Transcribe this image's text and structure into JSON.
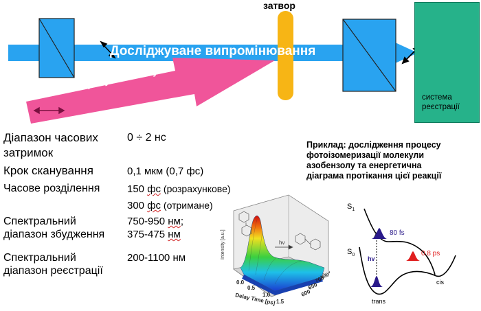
{
  "shutter_label": "затвор",
  "beam_label": "Досліджуване випромінювання",
  "gate_pulse_label": "Стробуючий імпульс",
  "detection_system": {
    "line1": "система",
    "line2": "реєстрації"
  },
  "specs": {
    "delay_range_label_1": "Діапазон часових",
    "delay_range_label_2": "затримок",
    "delay_range_value": "0 ÷ 2 нс",
    "scan_step_label": "Крок сканування",
    "scan_step_value": "0,1 мкм (0,7 фс)",
    "time_resolution_label": "Часове розділення",
    "time_res_value_1_num": "150 ",
    "time_res_value_1_unit": "фс",
    "time_res_value_1_note": " (розрахункове)",
    "time_res_value_2_num": "300 ",
    "time_res_value_2_unit": "фс",
    "time_res_value_2_note": " (отримане)",
    "excitation_label_1": "Спектральний",
    "excitation_label_2": "діапазон збудження",
    "excitation_value_1_num": "750-950 ",
    "excitation_value_1_unit": "нм",
    "excitation_value_1_suffix": ";",
    "excitation_value_2_num": "375-475 ",
    "excitation_value_2_unit": "нм",
    "registration_label_1": "Спектральний",
    "registration_label_2": "діапазон реєстрації",
    "registration_value": "200-1100 нм"
  },
  "example": {
    "line1": "Приклад: дослідження процесу",
    "line2": "фотоізомеризації молекули",
    "line3": "азобензолу та енергетична",
    "line4": "діаграма протікання цієї реакції"
  },
  "plot3d": {
    "z_axis_label": "Intensity [a.u.]",
    "x_axis_label": "Delay Time [ps]",
    "y_axis_label": "Wavelength",
    "x_ticks": [
      "0.0",
      "0.5",
      "1.0",
      "1.5"
    ],
    "y_ticks": [
      "600",
      "650",
      "700"
    ],
    "hv_label": "hv"
  },
  "energy_diagram": {
    "s1_label": "S",
    "s1_sub": "1",
    "s0_label": "S",
    "s0_sub": "0",
    "hv_label": "hv",
    "time_fast": "80 fs",
    "time_slow": "0.8 ps",
    "trans_label": "trans",
    "cis_label": "cis"
  },
  "colors": {
    "beam": "#29a3f0",
    "gate_pulse": "#f0559a",
    "shutter": "#f7b515",
    "detector": "#26b28a",
    "pulse_fast": "#2a1a8a",
    "pulse_slow": "#e02020"
  }
}
